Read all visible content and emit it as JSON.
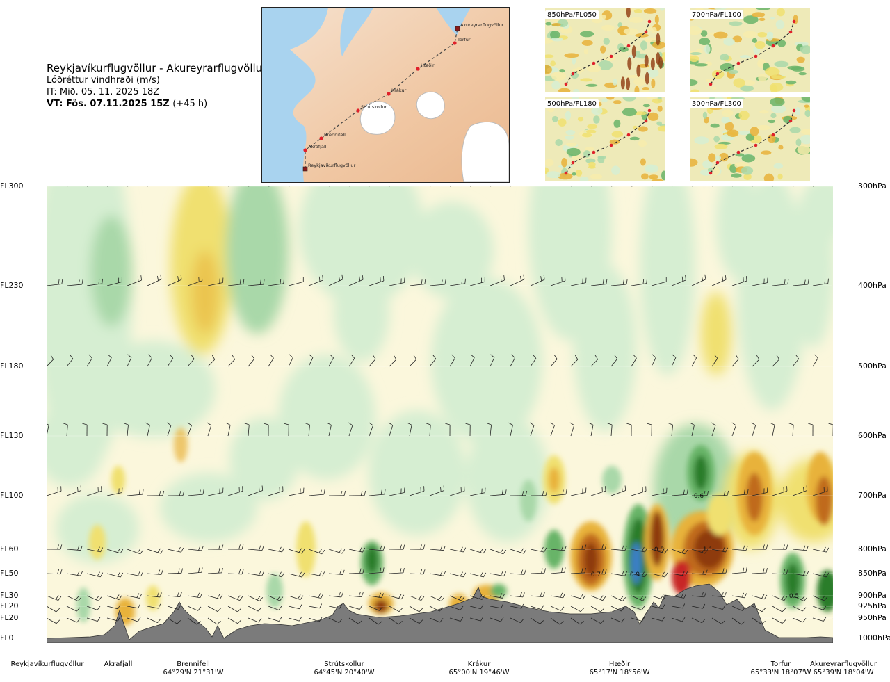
{
  "header": {
    "route": "Reykjavíkurflugvöllur - Akureyrarflugvöllur",
    "variable": "Lóðréttur vindhraði (m/s)",
    "it": "IT: Mið. 05. 11. 2025 18Z",
    "vt_bold": "VT: Fös. 07.11.2025 15Z",
    "vt_offset": "(+45 h)"
  },
  "map": {
    "points": [
      {
        "name": "Akureyrarflugvöllur"
      },
      {
        "name": "Torfur"
      },
      {
        "name": "Hæðir"
      },
      {
        "name": "Krákur"
      },
      {
        "name": "Strútskollur"
      },
      {
        "name": "Brennifell"
      },
      {
        "name": "Akrafjall"
      },
      {
        "name": "Reykjavíkurflugvöllur"
      }
    ]
  },
  "thumbnails": [
    {
      "label": "850hPa/FL050"
    },
    {
      "label": "700hPa/FL100"
    },
    {
      "label": "500hPa/FL180"
    },
    {
      "label": "300hPa/FL300"
    }
  ],
  "chart_data": {
    "type": "heatmap",
    "title": "Lóðréttur vindhraði (m/s)",
    "left_axis_labels": [
      "FL300",
      "FL230",
      "FL180",
      "FL130",
      "FL100",
      "FL60",
      "FL50",
      "FL30",
      "FL20",
      "FL20",
      "FL0"
    ],
    "right_axis_labels": [
      "300hPa",
      "400hPa",
      "500hPa",
      "600hPa",
      "700hPa",
      "800hPa",
      "850hPa",
      "900hPa",
      "925hPa",
      "950hPa",
      "1000hPa"
    ],
    "stations": [
      {
        "name": "Reykjavíkurflugvöllur",
        "coord": ""
      },
      {
        "name": "Akrafjall",
        "coord": ""
      },
      {
        "name": "Brennifell",
        "coord": "64°29'N 21°31'W"
      },
      {
        "name": "Strútskollur",
        "coord": "64°45'N 20°40'W"
      },
      {
        "name": "Krákur",
        "coord": "65°00'N 19°46'W"
      },
      {
        "name": "Hæðir",
        "coord": "65°17'N 18°56'W"
      },
      {
        "name": "Torfur",
        "coord": "65°33'N 18°07'W"
      },
      {
        "name": "Akureyrarflugvöllur",
        "coord": "65°39'N 18°04'W"
      }
    ],
    "annotations": [
      {
        "text": "0.6",
        "pressure_hpa": 700,
        "station": "Hæðir-Torfur"
      },
      {
        "text": "0.8",
        "pressure_hpa": 800,
        "station": "Hæðir"
      },
      {
        "text": "1.1",
        "pressure_hpa": 800,
        "station": "Hæðir-Torfur"
      },
      {
        "text": "0.7",
        "pressure_hpa": 850,
        "station": "Krákur-Hæðir"
      },
      {
        "text": "0.9",
        "pressure_hpa": 850,
        "station": "Hæðir"
      },
      {
        "text": "0.5",
        "pressure_hpa": 900,
        "station": "Torfur"
      }
    ],
    "colors": {
      "strong_down": "#2c7d2c",
      "mod_down": "#68b468",
      "weak_down": "#a9d8a9",
      "very_weak_down": "#d6eed2",
      "neutral": "#fbf7dc",
      "very_weak_up": "#f7ecac",
      "weak_up": "#f0e070",
      "mod_up": "#e8b23a",
      "strong_up": "#c06a1a",
      "very_strong_up": "#8e3a10",
      "extreme_up": "#c82828",
      "blue": "#3b7fc4",
      "terrain": "#7a7a7a"
    }
  }
}
